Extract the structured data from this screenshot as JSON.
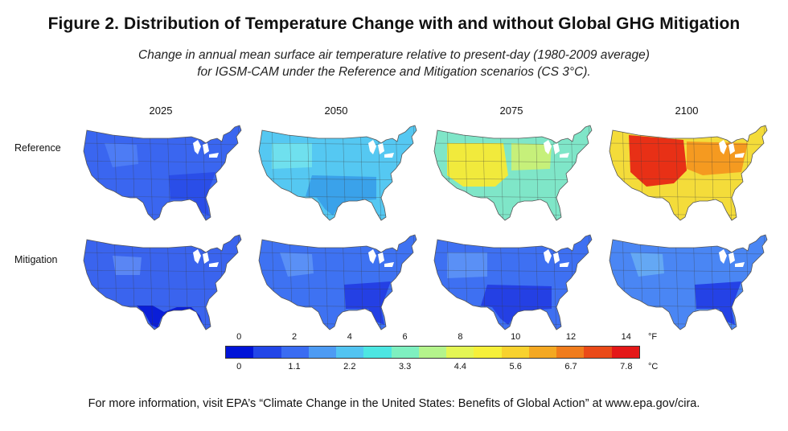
{
  "title": "Figure 2. Distribution of Temperature Change with and without Global GHG Mitigation",
  "subtitle_line1": "Change in annual mean surface air temperature relative to present-day (1980-2009 average)",
  "subtitle_line2": "for IGSM-CAM under the Reference and Mitigation scenarios (CS 3°C).",
  "years": [
    "2025",
    "2050",
    "2075",
    "2100"
  ],
  "scenarios": [
    "Reference",
    "Mitigation"
  ],
  "maps": [
    {
      "scenario": "Reference",
      "year": "2025",
      "base_color": "#3a66f0",
      "hot_color": "#2a4ee8",
      "hot_region": "southeast",
      "hot2_color": "#4d7cf5"
    },
    {
      "scenario": "Reference",
      "year": "2050",
      "base_color": "#55c8f2",
      "hot_color": "#3aa2ea",
      "hot_region": "south",
      "hot2_color": "#6fe0ee"
    },
    {
      "scenario": "Reference",
      "year": "2075",
      "base_color": "#7fe6c8",
      "hot_color": "#f1ea3c",
      "hot_region": "west",
      "hot2_color": "#c6f07a"
    },
    {
      "scenario": "Reference",
      "year": "2100",
      "base_color": "#f4dc3a",
      "hot_color": "#e83016",
      "hot_region": "west-center",
      "hot2_color": "#f59a20"
    },
    {
      "scenario": "Mitigation",
      "year": "2025",
      "base_color": "#3a64ee",
      "hot_color": "#0a1ed8",
      "hot_region": "gulf",
      "hot2_color": "#5a86f4"
    },
    {
      "scenario": "Mitigation",
      "year": "2050",
      "base_color": "#3e72f2",
      "hot_color": "#2440e4",
      "hot_region": "southeast",
      "hot2_color": "#5a90f6"
    },
    {
      "scenario": "Mitigation",
      "year": "2075",
      "base_color": "#3e70f2",
      "hot_color": "#2440e4",
      "hot_region": "south",
      "hot2_color": "#5a90f6"
    },
    {
      "scenario": "Mitigation",
      "year": "2100",
      "base_color": "#4a86f4",
      "hot_color": "#2442e6",
      "hot_region": "southeast",
      "hot2_color": "#64a8f4"
    }
  ],
  "legend": {
    "fahrenheit_ticks": [
      "0",
      "2",
      "4",
      "6",
      "8",
      "10",
      "12",
      "14"
    ],
    "celsius_ticks": [
      "0",
      "1.1",
      "2.2",
      "3.3",
      "4.4",
      "5.6",
      "6.7",
      "7.8"
    ],
    "fahrenheit_unit": "°F",
    "celsius_unit": "°C",
    "colors": [
      "#0014d8",
      "#2246e8",
      "#3a6cf2",
      "#4d9bf3",
      "#52c4f1",
      "#4ce6e2",
      "#7ef0c0",
      "#b4f48c",
      "#e4f654",
      "#f6f03a",
      "#f8d22e",
      "#f4a822",
      "#f07c1c",
      "#ea4a18",
      "#e41818"
    ]
  },
  "footer": "For more information, visit EPA’s “Climate Change in the United States: Benefits of Global Action” at www.epa.gov/cira."
}
